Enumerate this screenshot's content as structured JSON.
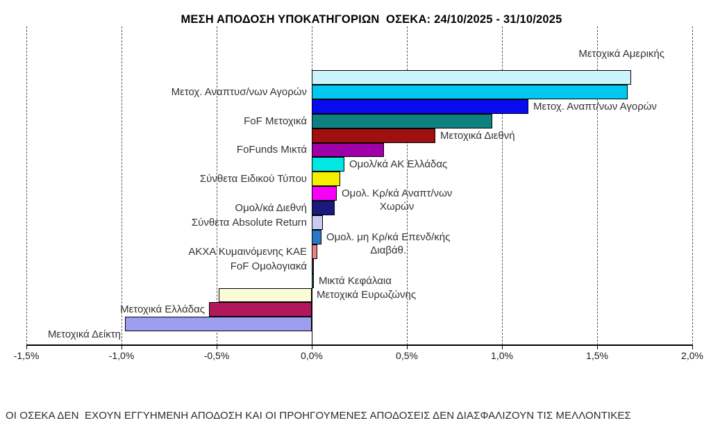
{
  "title": "ΜΕΣΗ ΑΠΟΔΟΣΗ ΥΠΟΚΑΤΗΓΟΡΙΩΝ  ΟΣΕΚΑ: 24/10/2025 - 31/10/2025",
  "period": {
    "from": "24/10/2025",
    "to": "31/10/2025"
  },
  "disclaimer": "ΟΙ ΟΣΕΚΑ ΔΕΝ  ΕΧΟΥΝ ΕΓΓΥΗΜΕΝΗ ΑΠΟΔΟΣΗ ΚΑΙ ΟΙ ΠΡΟΗΓΟΥΜΕΝΕΣ ΑΠΟΔΟΣΕΙΣ ΔΕΝ ΔΙΑΣΦΑΛΙΖΟΥΝ ΤΙΣ ΜΕΛΛΟΝΤΙΚΕΣ",
  "chart_data": {
    "type": "bar",
    "orientation": "horizontal",
    "title": "ΜΕΣΗ ΑΠΟΔΟΣΗ ΥΠΟΚΑΤΗΓΟΡΙΩΝ  ΟΣΕΚΑ: 24/10/2025 - 31/10/2025",
    "xlabel": "",
    "ylabel": "",
    "x_axis": {
      "unit": "%",
      "range": [
        -1.5,
        2.0
      ],
      "tick_values": [
        -1.5,
        -1.0,
        -0.5,
        0.0,
        0.5,
        1.0,
        1.5,
        2.0
      ],
      "tick_labels": [
        "-1,5%",
        "-1,0%",
        "-0,5%",
        "0,0%",
        "0,5%",
        "1,0%",
        "1,5%",
        "2,0%"
      ],
      "gridlines": "vertical-dashed"
    },
    "legend": "none",
    "bars": [
      {
        "label": "Μετοχικά Αμερικής",
        "value": 1.68,
        "color": "#C8F4FA",
        "label_side": "above-right"
      },
      {
        "label": "Μετοχ. Αναπτυσ/νων Αγορών",
        "value": 1.66,
        "color": "#00C8F0",
        "label_side": "left"
      },
      {
        "label": "Μετοχ. Αναπτ/νων Αγορών",
        "value": 1.14,
        "color": "#0A0AF0",
        "label_side": "right"
      },
      {
        "label": "FoF Μετοχικά",
        "value": 0.95,
        "color": "#0F8080",
        "label_side": "left"
      },
      {
        "label": "Μετοχικά Διεθνή",
        "value": 0.65,
        "color": "#A01010",
        "label_side": "right"
      },
      {
        "label": "FoFunds Μικτά",
        "value": 0.38,
        "color": "#A000A8",
        "label_side": "left"
      },
      {
        "label": "Ομολ/κά ΑΚ Ελλάδας",
        "value": 0.17,
        "color": "#00E8E0",
        "label_side": "right"
      },
      {
        "label": "Σύνθετα Ειδικού Τύπου",
        "value": 0.15,
        "color": "#F7EF00",
        "label_side": "left"
      },
      {
        "label": "Ομολ. Κρ/κά Αναπτ/νων Χωρών",
        "value": 0.13,
        "color": "#F600F6",
        "label_side": "right",
        "label_lines": [
          "Ομολ. Κρ/κά Αναπτ/νων",
          "Χωρών"
        ]
      },
      {
        "label": "Ομολ/κά Διεθνή",
        "value": 0.12,
        "color": "#1A1A7C",
        "label_side": "left"
      },
      {
        "label": "Σύνθετα Absolute Return",
        "value": 0.06,
        "color": "#CACAF2",
        "label_side": "left"
      },
      {
        "label": "Ομολ. μη Κρ/κά Επενδ/κής Διαβάθ.",
        "value": 0.05,
        "color": "#2A79C8",
        "label_side": "right",
        "label_lines": [
          "Ομολ. μη Κρ/κά Επενδ/κής",
          "Διαβάθ."
        ]
      },
      {
        "label": "ΑΚΧΑ Κυμαινόμενης ΚΑΕ",
        "value": 0.03,
        "color": "#F18086",
        "label_side": "left"
      },
      {
        "label": "FoF Ομολογιακά",
        "value": 0.01,
        "color": "#3A3A3A",
        "label_side": "left"
      },
      {
        "label": "Μικτά Κεφάλαια",
        "value": 0.01,
        "color": "#206040",
        "label_side": "right"
      },
      {
        "label": "Μετοχικά Ευρωζώνης",
        "value": -0.49,
        "color": "#FCFBD8",
        "label_side": "right"
      },
      {
        "label": "Μετοχικά Ελλάδας",
        "value": -0.54,
        "color": "#B2175E",
        "label_side": "outside-left"
      },
      {
        "label": "Μετοχικά Δείκτη",
        "value": -0.98,
        "color": "#9E9EF0",
        "label_side": "outside-left"
      }
    ]
  }
}
